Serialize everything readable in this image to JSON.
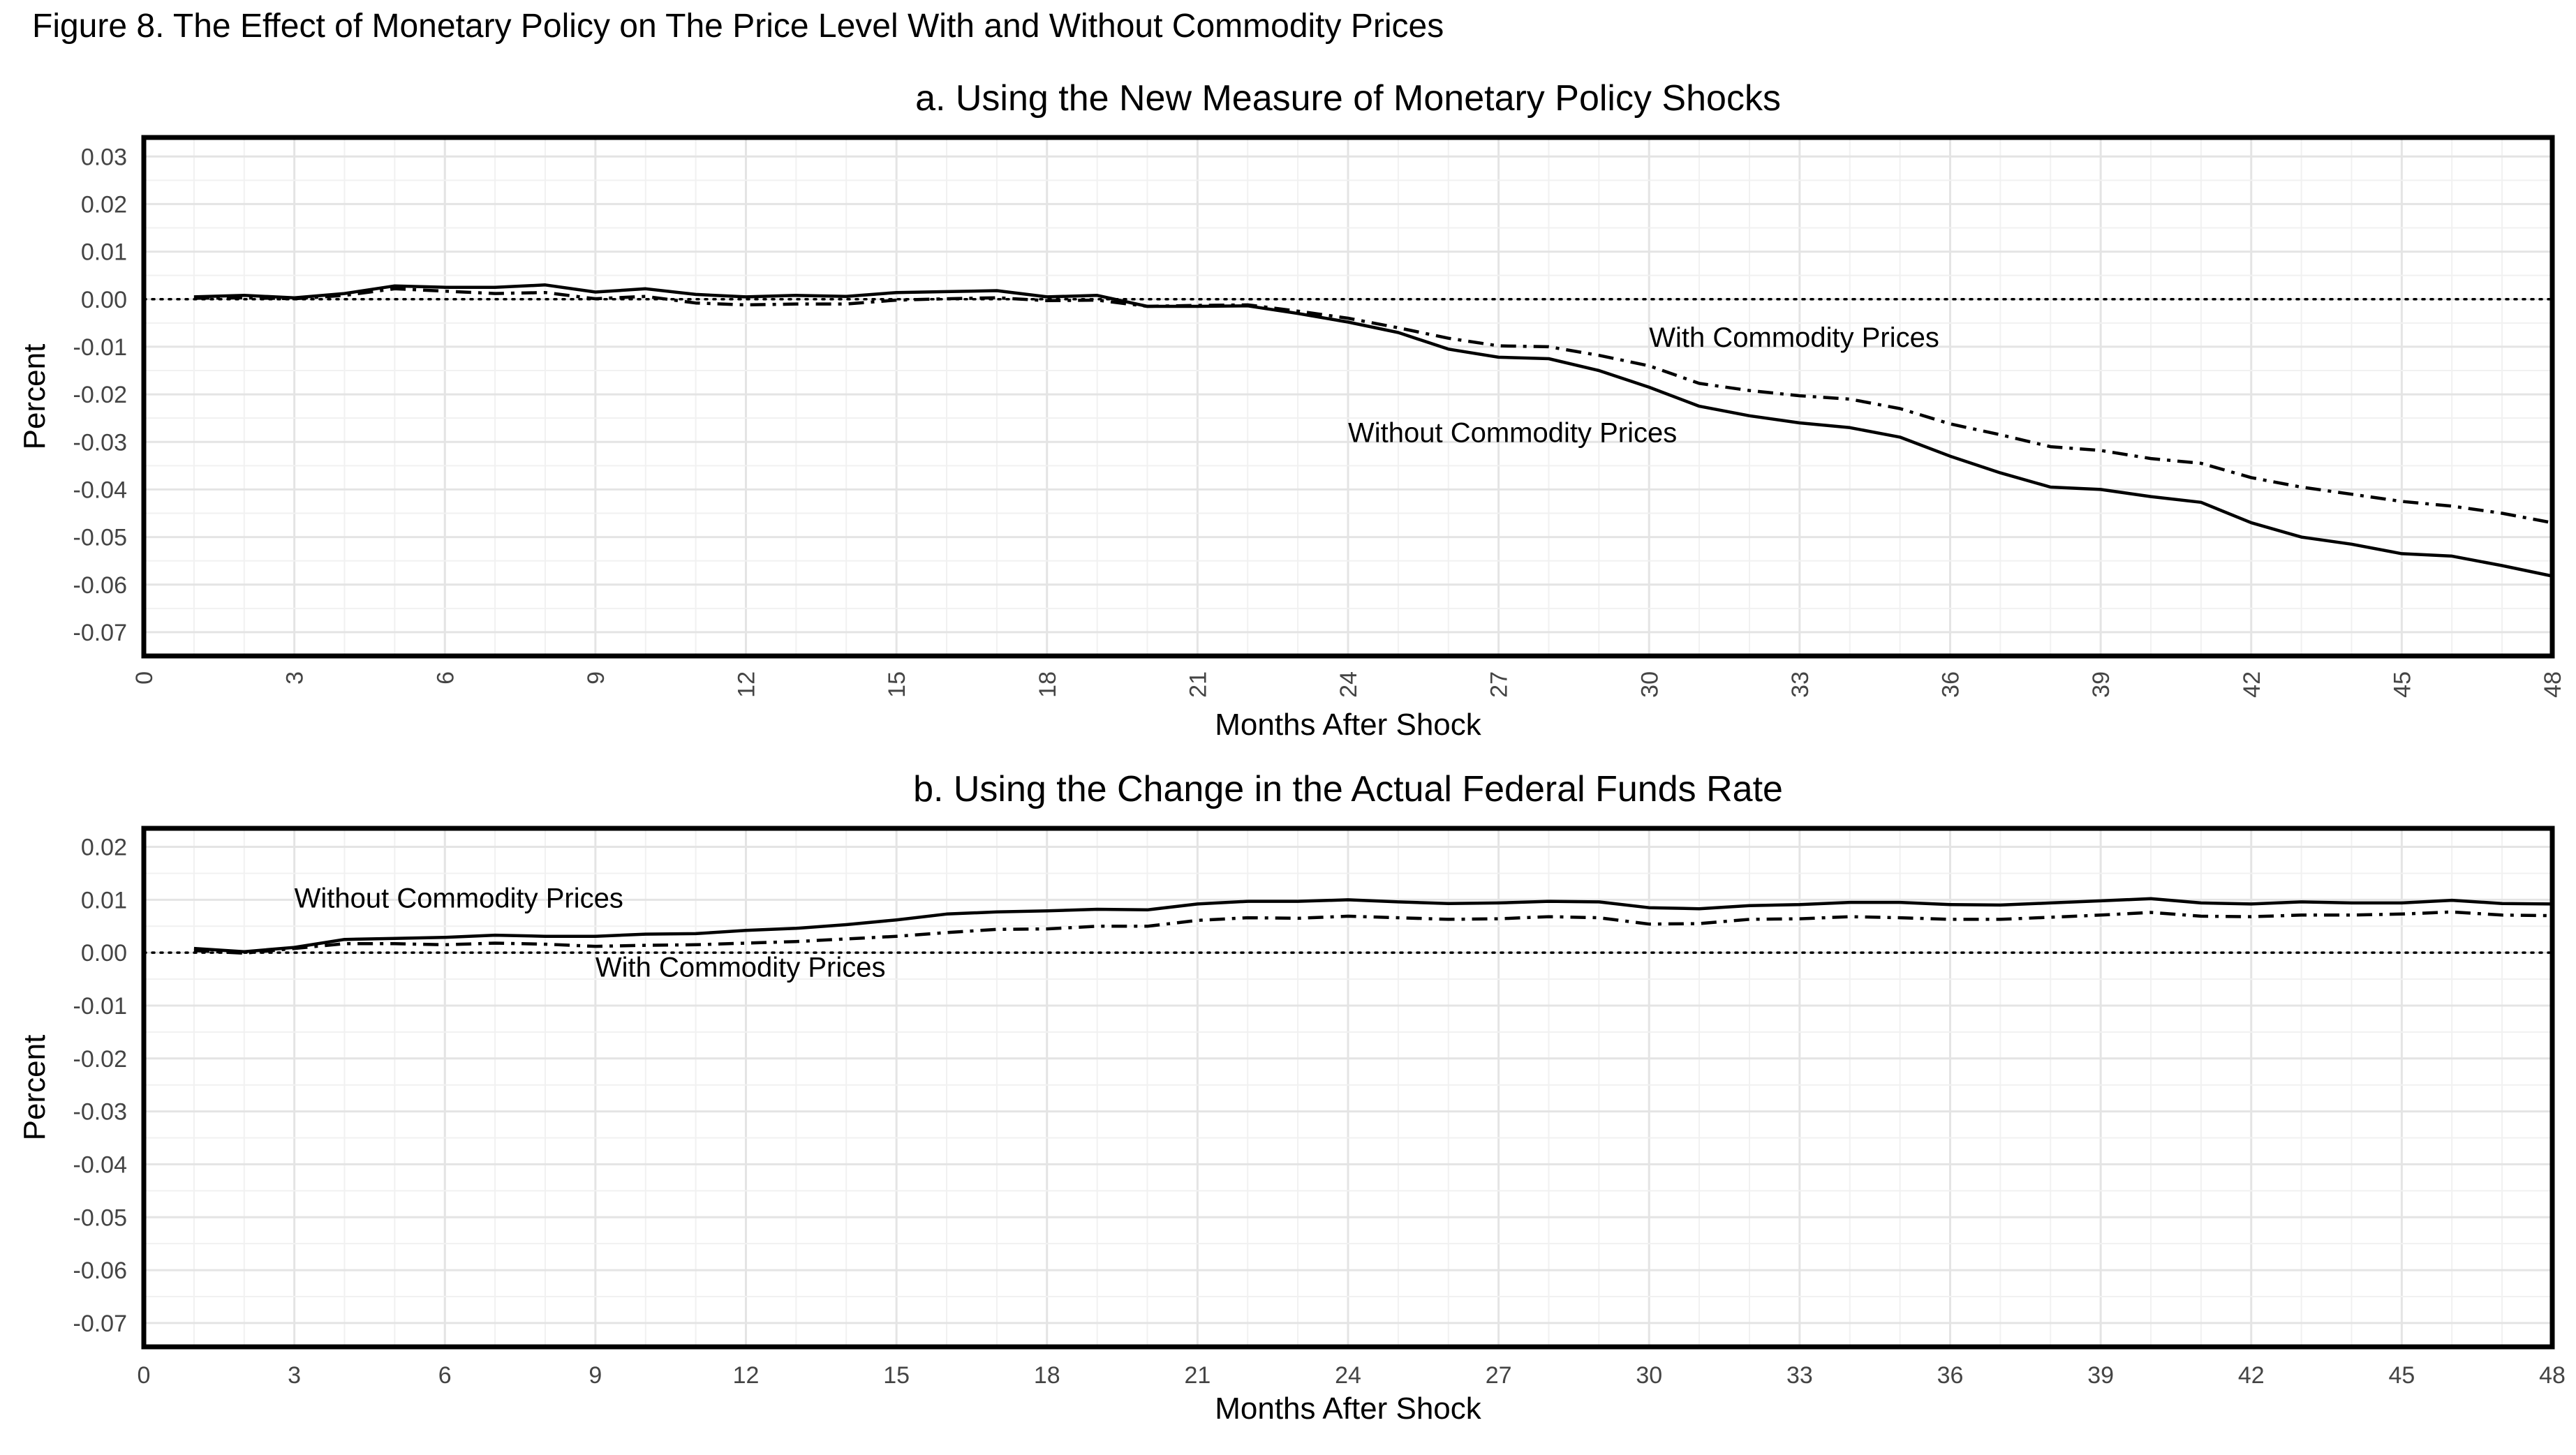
{
  "figure_title": "Figure 8. The Effect of Monetary Policy on The Price Level With and Without Commodity Prices",
  "chart_data": [
    {
      "type": "line",
      "title": "a. Using the New Measure of Monetary Policy Shocks",
      "xlabel": "Months After Shock",
      "ylabel": "Percent",
      "xlim": [
        0,
        48
      ],
      "ylim": [
        -0.075,
        0.034
      ],
      "x_ticks": [
        "0",
        "3",
        "6",
        "9",
        "12",
        "15",
        "18",
        "21",
        "24",
        "27",
        "30",
        "33",
        "36",
        "39",
        "42",
        "45",
        "48"
      ],
      "y_ticks": [
        "0.03",
        "0.02",
        "0.01",
        "0.00",
        "-0.01",
        "-0.02",
        "-0.03",
        "-0.04",
        "-0.05",
        "-0.06",
        "-0.07"
      ],
      "x_tick_rotation": "vertical",
      "grid": true,
      "reference_line": 0,
      "x": [
        1,
        2,
        3,
        4,
        5,
        6,
        7,
        8,
        9,
        10,
        11,
        12,
        13,
        14,
        15,
        16,
        17,
        18,
        19,
        20,
        21,
        22,
        23,
        24,
        25,
        26,
        27,
        28,
        29,
        30,
        31,
        32,
        33,
        34,
        35,
        36,
        37,
        38,
        39,
        40,
        41,
        42,
        43,
        44,
        45,
        46,
        47,
        48
      ],
      "series": [
        {
          "name": "Without Commodity Prices",
          "style": "solid",
          "values": [
            0.0005,
            0.0008,
            0.0003,
            0.0012,
            0.0028,
            0.0025,
            0.0025,
            0.003,
            0.0015,
            0.0022,
            0.001,
            0.0005,
            0.0008,
            0.0006,
            0.0014,
            0.0016,
            0.0018,
            0.0005,
            0.0008,
            -0.0015,
            -0.0015,
            -0.0014,
            -0.003,
            -0.0048,
            -0.007,
            -0.0105,
            -0.0122,
            -0.0125,
            -0.015,
            -0.0185,
            -0.0225,
            -0.0245,
            -0.026,
            -0.027,
            -0.029,
            -0.033,
            -0.0365,
            -0.0395,
            -0.04,
            -0.0415,
            -0.0427,
            -0.047,
            -0.05,
            -0.0515,
            -0.0535,
            -0.054,
            -0.056,
            -0.0582
          ]
        },
        {
          "name": "With Commodity Prices",
          "style": "dashdot",
          "values": [
            0.0002,
            0.0003,
            0.0001,
            0.0008,
            0.0022,
            0.0017,
            0.0012,
            0.0014,
            0.0001,
            0.0006,
            -0.0008,
            -0.0012,
            -0.001,
            -0.001,
            -0.0002,
            0.0001,
            0.0003,
            -0.0003,
            -0.0002,
            -0.0015,
            -0.0013,
            -0.0012,
            -0.0025,
            -0.004,
            -0.006,
            -0.0082,
            -0.0098,
            -0.01,
            -0.0118,
            -0.014,
            -0.0177,
            -0.0192,
            -0.0203,
            -0.021,
            -0.023,
            -0.0262,
            -0.0285,
            -0.031,
            -0.0318,
            -0.0335,
            -0.0345,
            -0.0375,
            -0.0395,
            -0.041,
            -0.0425,
            -0.0435,
            -0.045,
            -0.047
          ]
        }
      ],
      "annotations": [
        {
          "text": "With Commodity Prices",
          "x": 30,
          "y": -0.01
        },
        {
          "text": "Without Commodity Prices",
          "x": 24,
          "y": -0.03
        }
      ]
    },
    {
      "type": "line",
      "title": "b. Using the Change in the Actual Federal Funds Rate",
      "xlabel": "Months After Shock",
      "ylabel": "Percent",
      "xlim": [
        0,
        48
      ],
      "ylim": [
        -0.0745,
        0.0235
      ],
      "x_ticks": [
        "0",
        "3",
        "6",
        "9",
        "12",
        "15",
        "18",
        "21",
        "24",
        "27",
        "30",
        "33",
        "36",
        "39",
        "42",
        "45",
        "48"
      ],
      "y_ticks": [
        "0.02",
        "0.01",
        "0.00",
        "-0.01",
        "-0.02",
        "-0.03",
        "-0.04",
        "-0.05",
        "-0.06",
        "-0.07"
      ],
      "x_tick_rotation": "horizontal",
      "grid": true,
      "reference_line": 0,
      "x": [
        1,
        2,
        3,
        4,
        5,
        6,
        7,
        8,
        9,
        10,
        11,
        12,
        13,
        14,
        15,
        16,
        17,
        18,
        19,
        20,
        21,
        22,
        23,
        24,
        25,
        26,
        27,
        28,
        29,
        30,
        31,
        32,
        33,
        34,
        35,
        36,
        37,
        38,
        39,
        40,
        41,
        42,
        43,
        44,
        45,
        46,
        47,
        48
      ],
      "series": [
        {
          "name": "Without Commodity Prices",
          "style": "solid",
          "values": [
            0.0008,
            0.0002,
            0.001,
            0.0025,
            0.0027,
            0.0029,
            0.0033,
            0.0031,
            0.0031,
            0.0035,
            0.0036,
            0.0042,
            0.0046,
            0.0053,
            0.0062,
            0.0073,
            0.0077,
            0.0079,
            0.0082,
            0.0081,
            0.0092,
            0.0097,
            0.0097,
            0.01,
            0.0096,
            0.0093,
            0.0094,
            0.0097,
            0.0096,
            0.0085,
            0.0083,
            0.0089,
            0.0091,
            0.0095,
            0.0095,
            0.0091,
            0.009,
            0.0094,
            0.0098,
            0.0102,
            0.0094,
            0.0092,
            0.0096,
            0.0094,
            0.0094,
            0.0099,
            0.0093,
            0.0092
          ]
        },
        {
          "name": "With Commodity Prices",
          "style": "dashdot",
          "values": [
            0.0004,
            -0.0001,
            0.0008,
            0.0017,
            0.0017,
            0.0015,
            0.0018,
            0.0016,
            0.0012,
            0.0014,
            0.0015,
            0.0018,
            0.0021,
            0.0026,
            0.0031,
            0.0038,
            0.0044,
            0.0045,
            0.005,
            0.005,
            0.0061,
            0.0066,
            0.0065,
            0.0069,
            0.0066,
            0.0063,
            0.0064,
            0.0068,
            0.0066,
            0.0054,
            0.0055,
            0.0063,
            0.0064,
            0.0068,
            0.0066,
            0.0063,
            0.0063,
            0.0067,
            0.0071,
            0.0076,
            0.0069,
            0.0068,
            0.0071,
            0.0071,
            0.0073,
            0.0077,
            0.0071,
            0.007
          ]
        }
      ],
      "annotations": [
        {
          "text": "Without Commodity Prices",
          "x": 3,
          "y": 0.0085
        },
        {
          "text": "With Commodity Prices",
          "x": 9,
          "y": -0.0045
        }
      ]
    }
  ]
}
